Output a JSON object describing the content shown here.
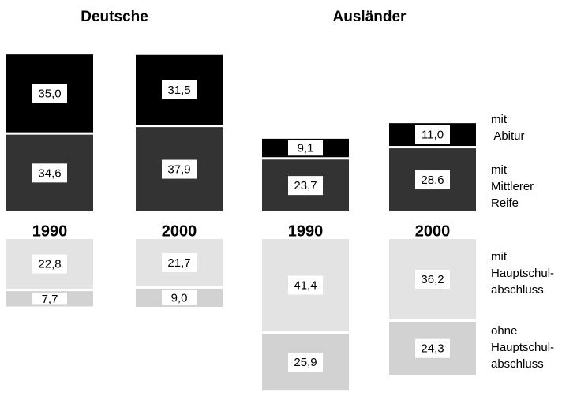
{
  "chart_data": {
    "type": "diverging-stacked-bar",
    "groups": [
      "Deutsche",
      "Ausländer"
    ],
    "categories": [
      "1990",
      "2000",
      "1990",
      "2000"
    ],
    "category_group": [
      0,
      0,
      1,
      1
    ],
    "series": [
      {
        "name": "mit\n Abitur",
        "color": "#000000",
        "side": "above",
        "values": [
          35.0,
          31.5,
          9.1,
          11.0
        ],
        "value_labels": [
          "35,0",
          "31,5",
          "9,1",
          "11,0"
        ]
      },
      {
        "name": "mit\nMittlerer\nReife",
        "color": "#333333",
        "side": "above",
        "values": [
          34.6,
          37.9,
          23.7,
          28.6
        ],
        "value_labels": [
          "34,6",
          "37,9",
          "23,7",
          "28,6"
        ]
      },
      {
        "name": "mit\nHauptschul-\nabschluss",
        "color": "#e3e3e3",
        "side": "below",
        "values": [
          22.8,
          21.7,
          41.4,
          36.2
        ],
        "value_labels": [
          "22,8",
          "21,7",
          "41,4",
          "36,2"
        ]
      },
      {
        "name": "ohne\nHauptschul-\nabschluss",
        "color": "#d2d2d2",
        "side": "below",
        "values": [
          7.7,
          9.0,
          25.9,
          24.3
        ],
        "value_labels": [
          "7,7",
          "9,0",
          "25,9",
          "24,3"
        ]
      }
    ]
  }
}
